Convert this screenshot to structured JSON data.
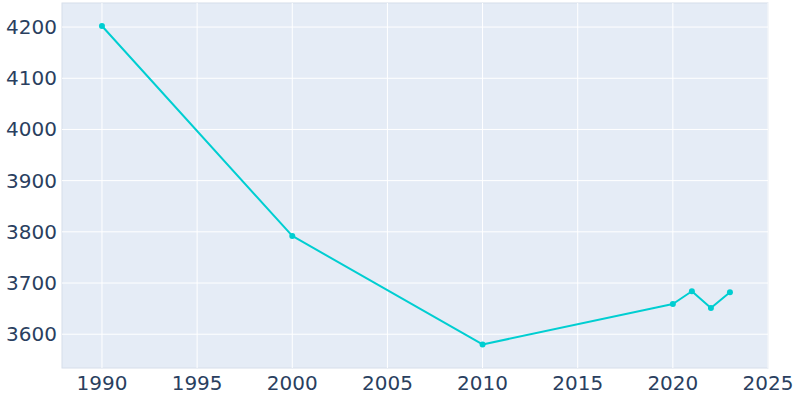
{
  "chart_data": {
    "type": "line",
    "x": [
      1990,
      2000,
      2010,
      2020,
      2021,
      2022,
      2023
    ],
    "values": [
      4202,
      3792,
      3580,
      3659,
      3684,
      3651,
      3682
    ],
    "color": "#00ced1",
    "marker": "circle",
    "xlim": [
      1987.9,
      2025.0
    ],
    "xticks": [
      1990,
      1995,
      2000,
      2005,
      2010,
      2015,
      2020,
      2025
    ],
    "ylim": [
      3534,
      4247
    ],
    "yticks": [
      3600,
      3700,
      3800,
      3900,
      4000,
      4100,
      4200
    ],
    "grid": true
  }
}
